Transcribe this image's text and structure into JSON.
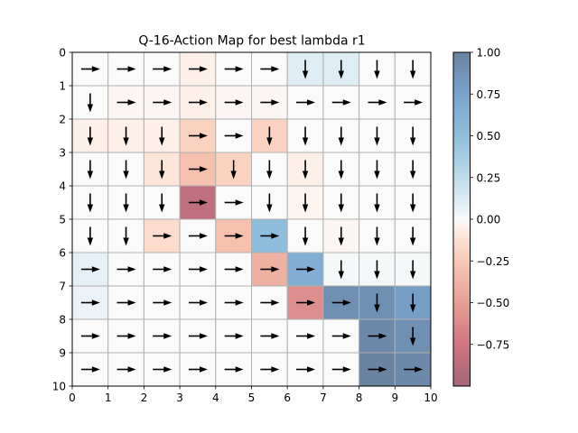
{
  "chart_data": {
    "type": "heatmap",
    "title": "Q-16-Action Map for best lambda r1",
    "xlabel": "",
    "ylabel": "",
    "xlim": [
      0,
      10
    ],
    "ylim": [
      10,
      0
    ],
    "x_ticks": [
      "0",
      "1",
      "2",
      "3",
      "4",
      "5",
      "6",
      "7",
      "8",
      "9",
      "10"
    ],
    "y_ticks": [
      "0",
      "1",
      "2",
      "3",
      "4",
      "5",
      "6",
      "7",
      "8",
      "9",
      "10"
    ],
    "grid": true,
    "colormap": "RdBu (diverging, alpha 0.6)",
    "colorbar": {
      "range": [
        -1.0,
        1.0
      ],
      "ticks": [
        "1.00",
        "0.75",
        "0.50",
        "0.25",
        "0.00",
        "−0.25",
        "−0.50",
        "−0.75"
      ],
      "tick_values": [
        1.0,
        0.75,
        0.5,
        0.25,
        0.0,
        -0.25,
        -0.5,
        -0.75
      ]
    },
    "values": [
      [
        0.0,
        0.0,
        0.0,
        -0.05,
        0.0,
        0.0,
        0.1,
        0.1,
        0.0,
        0.0
      ],
      [
        0.0,
        -0.02,
        -0.02,
        -0.05,
        -0.02,
        -0.02,
        0.0,
        0.0,
        0.0,
        0.0
      ],
      [
        -0.05,
        -0.05,
        -0.05,
        -0.2,
        0.0,
        -0.2,
        0.0,
        0.0,
        0.0,
        0.0
      ],
      [
        0.0,
        0.0,
        -0.1,
        -0.3,
        -0.2,
        0.0,
        -0.05,
        0.0,
        0.0,
        0.0
      ],
      [
        0.0,
        0.0,
        0.0,
        -0.85,
        0.0,
        0.0,
        -0.03,
        0.0,
        0.0,
        0.0
      ],
      [
        0.0,
        0.0,
        -0.15,
        0.0,
        -0.3,
        0.5,
        0.0,
        -0.02,
        0.0,
        0.0
      ],
      [
        0.07,
        0.0,
        0.0,
        0.0,
        0.0,
        -0.4,
        0.65,
        0.02,
        0.02,
        0.02
      ],
      [
        0.05,
        0.0,
        0.0,
        0.0,
        0.0,
        0.0,
        -0.6,
        0.9,
        0.9,
        0.8
      ],
      [
        0.0,
        0.0,
        0.0,
        0.0,
        0.0,
        0.0,
        0.0,
        0.0,
        0.95,
        0.9
      ],
      [
        0.0,
        0.0,
        0.0,
        0.0,
        0.0,
        0.0,
        0.0,
        0.0,
        1.0,
        0.95
      ]
    ],
    "actions": [
      [
        "right",
        "right",
        "right",
        "right",
        "right",
        "right",
        "down",
        "down",
        "down",
        "down"
      ],
      [
        "down",
        "right",
        "right",
        "right",
        "right",
        "right",
        "right",
        "right",
        "right",
        "right"
      ],
      [
        "down",
        "down",
        "down",
        "right",
        "right",
        "down",
        "down",
        "down",
        "down",
        "down"
      ],
      [
        "down",
        "down",
        "down",
        "right",
        "down",
        "down",
        "down",
        "down",
        "down",
        "down"
      ],
      [
        "down",
        "down",
        "down",
        "right",
        "right",
        "down",
        "down",
        "down",
        "down",
        "down"
      ],
      [
        "down",
        "down",
        "right",
        "right",
        "right",
        "right",
        "down",
        "down",
        "down",
        "down"
      ],
      [
        "right",
        "right",
        "right",
        "right",
        "right",
        "right",
        "right",
        "down",
        "down",
        "down"
      ],
      [
        "right",
        "right",
        "right",
        "right",
        "right",
        "right",
        "right",
        "right",
        "down",
        "down"
      ],
      [
        "right",
        "right",
        "right",
        "right",
        "right",
        "right",
        "right",
        "right",
        "right",
        "down"
      ],
      [
        "right",
        "right",
        "right",
        "right",
        "right",
        "right",
        "right",
        "right",
        "right",
        "right"
      ]
    ]
  }
}
